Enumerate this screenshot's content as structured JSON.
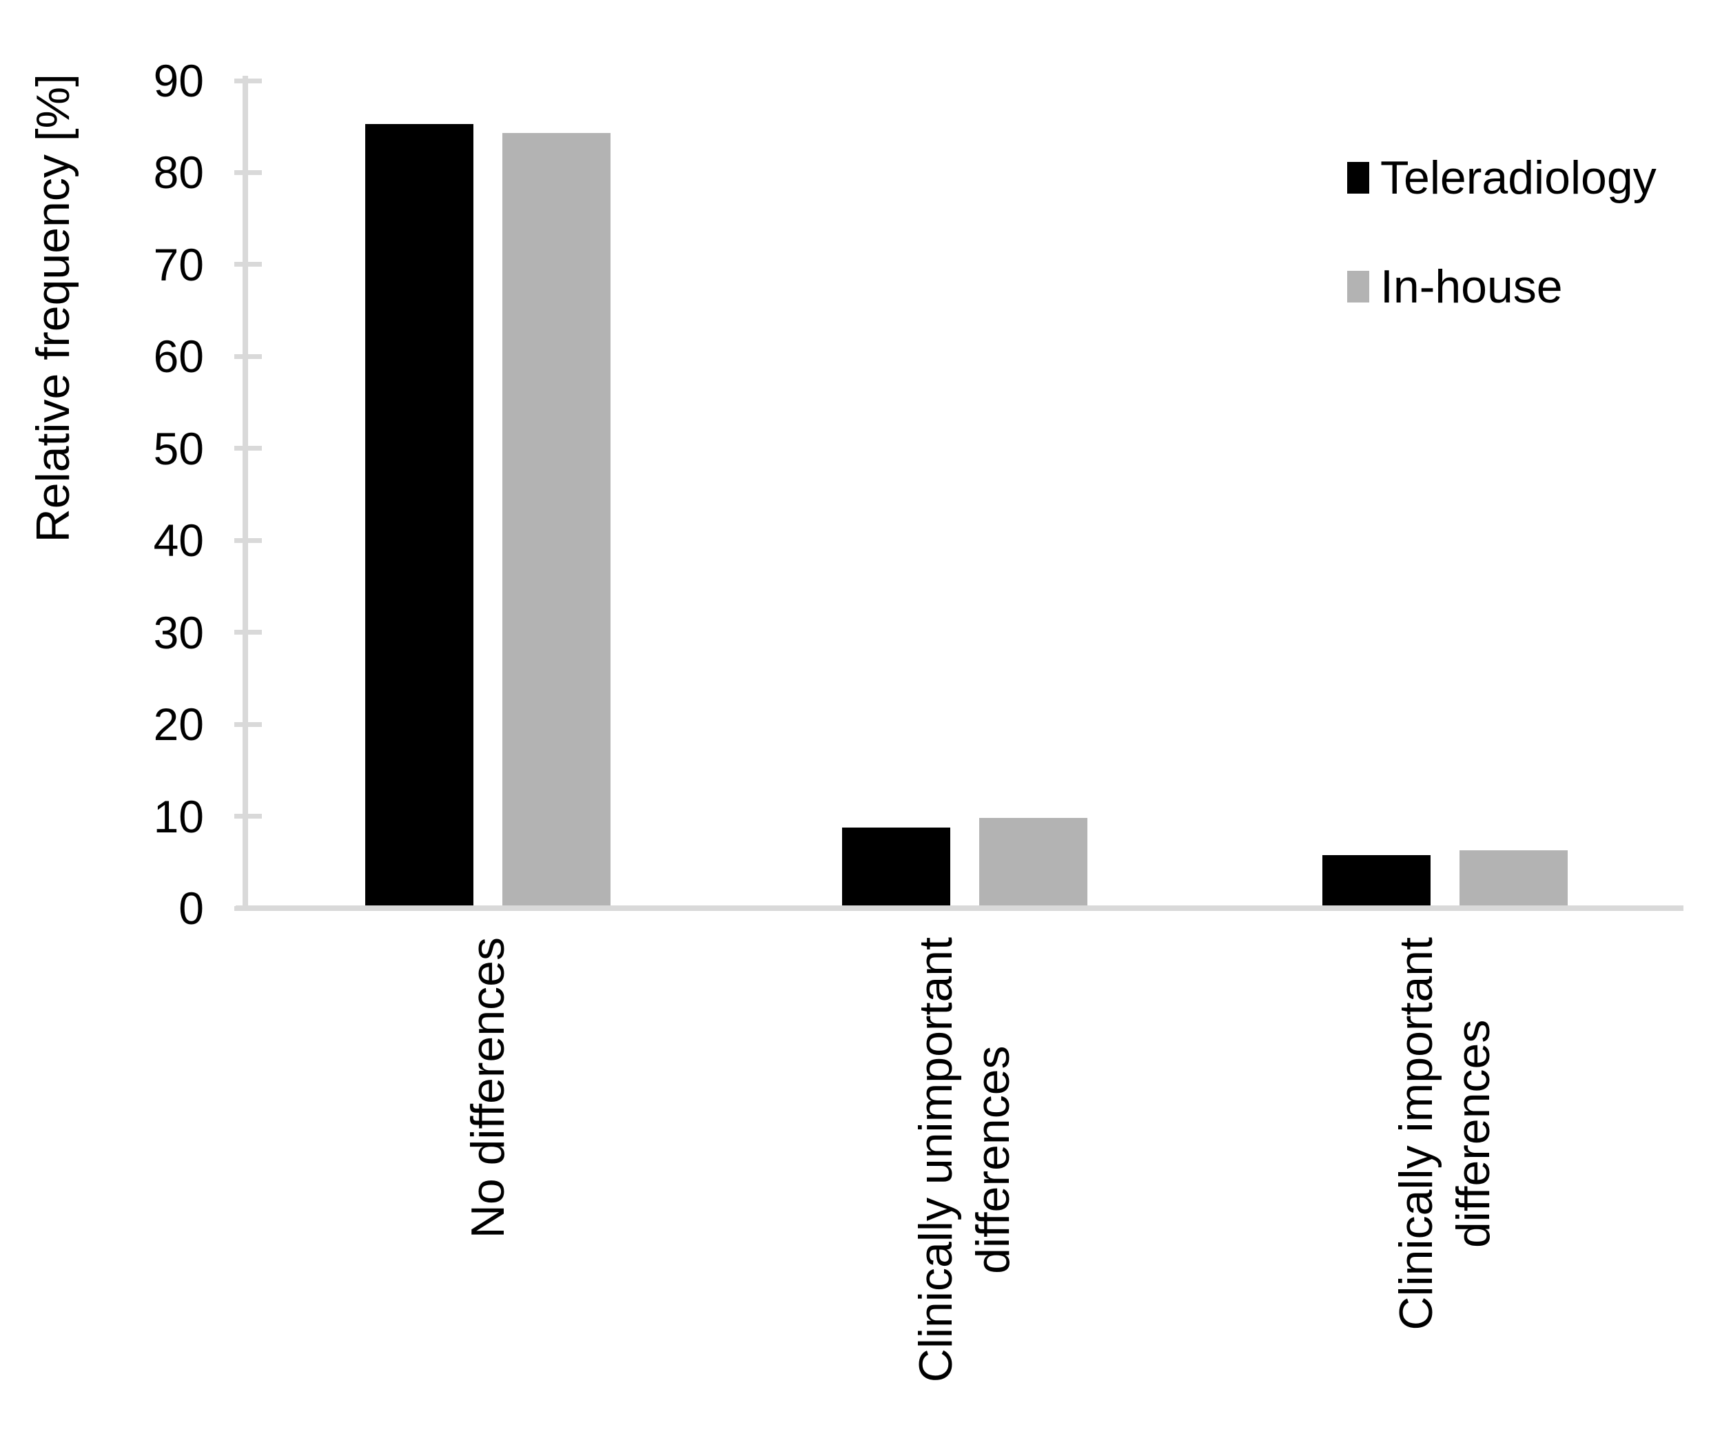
{
  "chart_data": {
    "type": "bar",
    "title": "",
    "xlabel": "",
    "ylabel": "Relative frequency [%]",
    "categories": [
      "No differences",
      "Clinically unimportant\ndifferences",
      "Clinically important\ndifferences"
    ],
    "series": [
      {
        "name": "Teleradiology",
        "color": "#000000",
        "values": [
          85,
          8.5,
          5.5
        ]
      },
      {
        "name": "In-house",
        "color": "#b3b3b3",
        "values": [
          84,
          9.5,
          6
        ]
      }
    ],
    "ylim": [
      0,
      90
    ],
    "yticks": [
      0,
      10,
      20,
      30,
      40,
      50,
      60,
      70,
      80,
      90
    ],
    "grid": false,
    "legend_position": "top-right",
    "axis_color": "#d9d9d9",
    "background_color": "#ffffff"
  }
}
